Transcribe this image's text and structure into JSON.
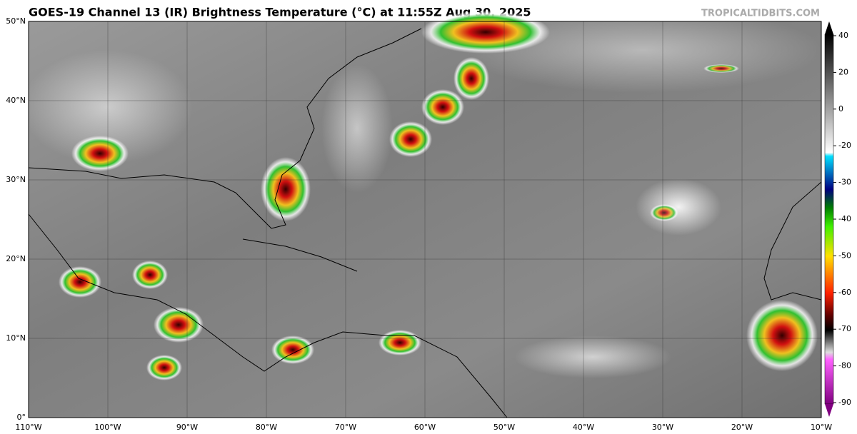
{
  "header": {
    "title": "GOES-19 Channel 13 (IR) Brightness Temperature (°C) at 11:55Z Aug 30, 2025",
    "credit": "TROPICALTIDBITS.COM"
  },
  "map": {
    "latitude_labels": [
      "50°N",
      "40°N",
      "30°N",
      "20°N",
      "10°N",
      "0°"
    ],
    "longitude_labels": [
      "110°W",
      "100°W",
      "90°W",
      "80°W",
      "70°W",
      "60°W",
      "50°W",
      "40°W",
      "30°W",
      "20°W",
      "10°W"
    ]
  },
  "colorbar": {
    "ticks": [
      40,
      20,
      0,
      -20,
      -30,
      -40,
      -50,
      -60,
      -70,
      -80,
      -90
    ]
  }
}
